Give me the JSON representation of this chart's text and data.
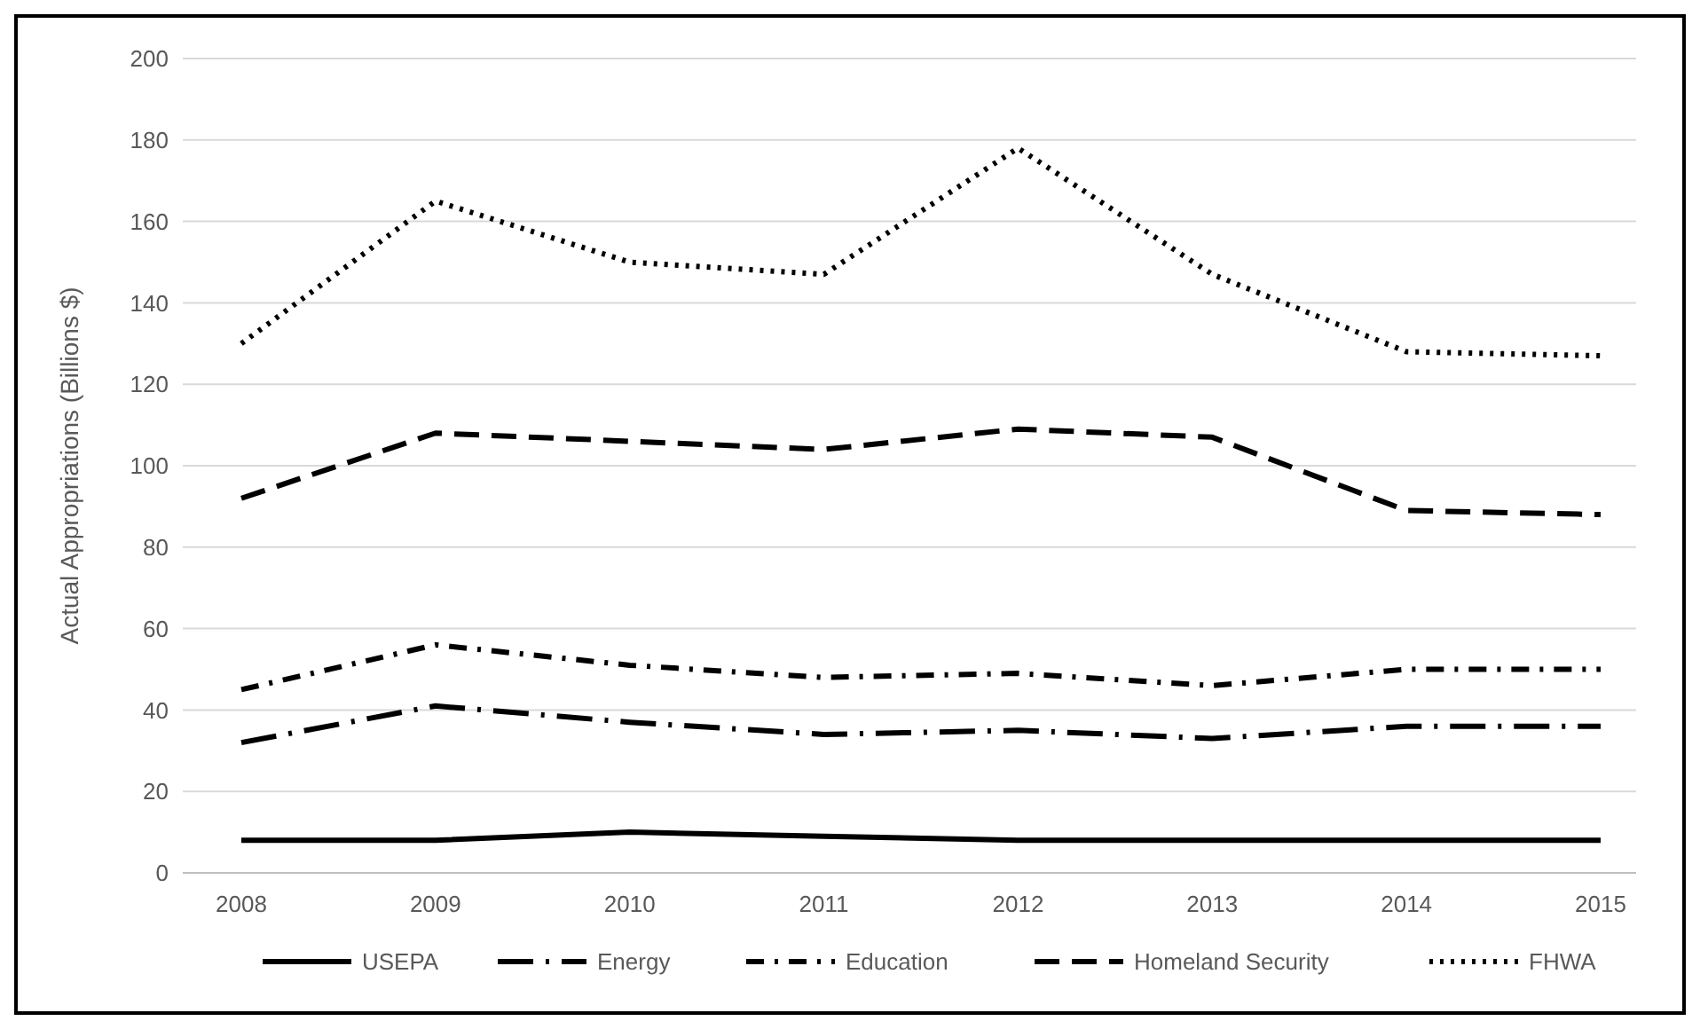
{
  "chart_data": {
    "type": "line",
    "ylabel": "Actual Appropriations (Billions $)",
    "categories": [
      "2008",
      "2009",
      "2010",
      "2011",
      "2012",
      "2013",
      "2014",
      "2015"
    ],
    "ylim": [
      0,
      200
    ],
    "yticks": [
      0,
      20,
      40,
      60,
      80,
      100,
      120,
      140,
      160,
      180,
      200
    ],
    "grid": "y",
    "legend": "bottom",
    "marker": "none",
    "series": [
      {
        "name": "USEPA",
        "color": "#000000",
        "line_style": "solid",
        "values": [
          8,
          8,
          10,
          9,
          8,
          8,
          8,
          8
        ]
      },
      {
        "name": "Energy",
        "color": "#000000",
        "line_style": "longdashdot",
        "values": [
          32,
          41,
          37,
          34,
          35,
          33,
          36,
          36
        ]
      },
      {
        "name": "Education",
        "color": "#000000",
        "line_style": "dashdot",
        "values": [
          45,
          56,
          51,
          48,
          49,
          46,
          50,
          50
        ]
      },
      {
        "name": "Homeland Security",
        "color": "#000000",
        "line_style": "dashed",
        "values": [
          92,
          108,
          106,
          104,
          109,
          107,
          89,
          88
        ]
      },
      {
        "name": "FHWA",
        "color": "#000000",
        "line_style": "dotted",
        "values": [
          130,
          165,
          150,
          147,
          178,
          147,
          128,
          127
        ]
      }
    ]
  }
}
